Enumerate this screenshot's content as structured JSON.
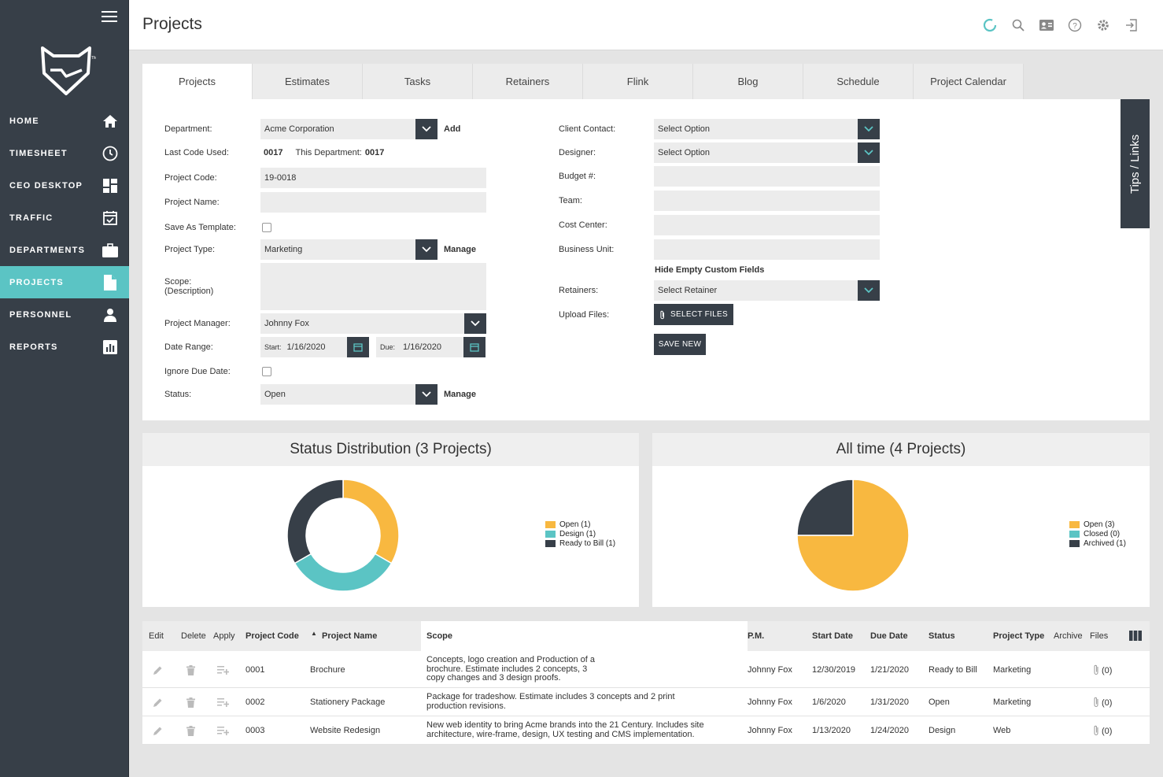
{
  "colors": {
    "sidebar": "#373f48",
    "accent": "#5bc4c4",
    "open": "#f8b840",
    "design": "#5bc4c4",
    "ready": "#373f48"
  },
  "nav": [
    {
      "label": "HOME",
      "icon": "home-icon"
    },
    {
      "label": "TIMESHEET",
      "icon": "clock-icon"
    },
    {
      "label": "CEO DESKTOP",
      "icon": "dashboard-icon"
    },
    {
      "label": "TRAFFIC",
      "icon": "calendar-check-icon"
    },
    {
      "label": "DEPARTMENTS",
      "icon": "briefcase-icon"
    },
    {
      "label": "PROJECTS",
      "icon": "document-icon"
    },
    {
      "label": "PERSONNEL",
      "icon": "person-icon"
    },
    {
      "label": "REPORTS",
      "icon": "bar-chart-icon"
    }
  ],
  "header": {
    "title": "Projects"
  },
  "tabs": [
    "Projects",
    "Estimates",
    "Tasks",
    "Retainers",
    "Flink",
    "Blog",
    "Schedule",
    "Project Calendar"
  ],
  "form": {
    "department_label": "Department:",
    "department_value": "Acme Corporation",
    "add_label": "Add",
    "last_code_label": "Last Code Used:",
    "last_code_value": "0017",
    "this_dept_label": "This Department:",
    "this_dept_value": "0017",
    "project_code_label": "Project Code:",
    "project_code_value": "19-0018",
    "project_name_label": "Project Name:",
    "save_template_label": "Save As Template:",
    "project_type_label": "Project Type:",
    "project_type_value": "Marketing",
    "manage_label": "Manage",
    "scope_label": "Scope:",
    "scope_sub": "(Description)",
    "pm_label": "Project Manager:",
    "pm_value": "Johnny Fox",
    "date_range_label": "Date Range:",
    "start_label": "Start:",
    "start_value": "1/16/2020",
    "due_label": "Due:",
    "due_value": "1/16/2020",
    "ignore_due_label": "Ignore Due Date:",
    "status_label": "Status:",
    "status_value": "Open",
    "client_contact_label": "Client Contact:",
    "select_option": "Select Option",
    "designer_label": "Designer:",
    "budget_label": "Budget #:",
    "team_label": "Team:",
    "cost_center_label": "Cost Center:",
    "business_unit_label": "Business Unit:",
    "hide_empty_label": "Hide Empty Custom Fields",
    "retainers_label": "Retainers:",
    "retainer_value": "Select Retainer",
    "upload_label": "Upload Files:",
    "select_files_label": "SELECT FILES",
    "save_new_label": "SAVE NEW",
    "tips_label": "Tips / Links"
  },
  "chart_data": [
    {
      "type": "pie",
      "title": "Status Distribution (3 Projects)",
      "donut": true,
      "categories": [
        "Open (1)",
        "Design (1)",
        "Ready to Bill (1)"
      ],
      "values": [
        1,
        1,
        1
      ],
      "colors": [
        "#f8b840",
        "#5bc4c4",
        "#373f48"
      ],
      "legend_position": "right"
    },
    {
      "type": "pie",
      "title": "All time (4 Projects)",
      "donut": false,
      "categories": [
        "Open (3)",
        "Closed (0)",
        "Archived (1)"
      ],
      "values": [
        3,
        0,
        1
      ],
      "colors": [
        "#f8b840",
        "#5bc4c4",
        "#373f48"
      ],
      "legend_position": "right"
    }
  ],
  "table": {
    "headers": [
      "Edit",
      "Delete",
      "Apply",
      "Project Code",
      "Project Name",
      "Scope",
      "P.M.",
      "Start Date",
      "Due Date",
      "Status",
      "Project Type",
      "Archive",
      "Files"
    ],
    "rows": [
      {
        "code": "0001",
        "name": "Brochure",
        "scope": "Concepts, logo creation and Production of a brochure. Estimate includes 2 concepts, 3 copy changes and 3 design proofs.",
        "pm": "Johnny Fox",
        "start": "12/30/2019",
        "due": "1/21/2020",
        "status": "Ready to Bill",
        "type": "Marketing",
        "files": "(0)"
      },
      {
        "code": "0002",
        "name": "Stationery Package",
        "scope": "Package for tradeshow. Estimate includes 3 concepts and 2 print production revisions.",
        "pm": "Johnny Fox",
        "start": "1/6/2020",
        "due": "1/31/2020",
        "status": "Open",
        "type": "Marketing",
        "files": "(0)"
      },
      {
        "code": "0003",
        "name": "Website Redesign",
        "scope": "New web identity to bring Acme brands into the 21 Century. Includes site architecture, wire-frame, design, UX testing and CMS implementation.",
        "pm": "Johnny Fox",
        "start": "1/13/2020",
        "due": "1/24/2020",
        "status": "Design",
        "type": "Web",
        "files": "(0)"
      }
    ]
  }
}
